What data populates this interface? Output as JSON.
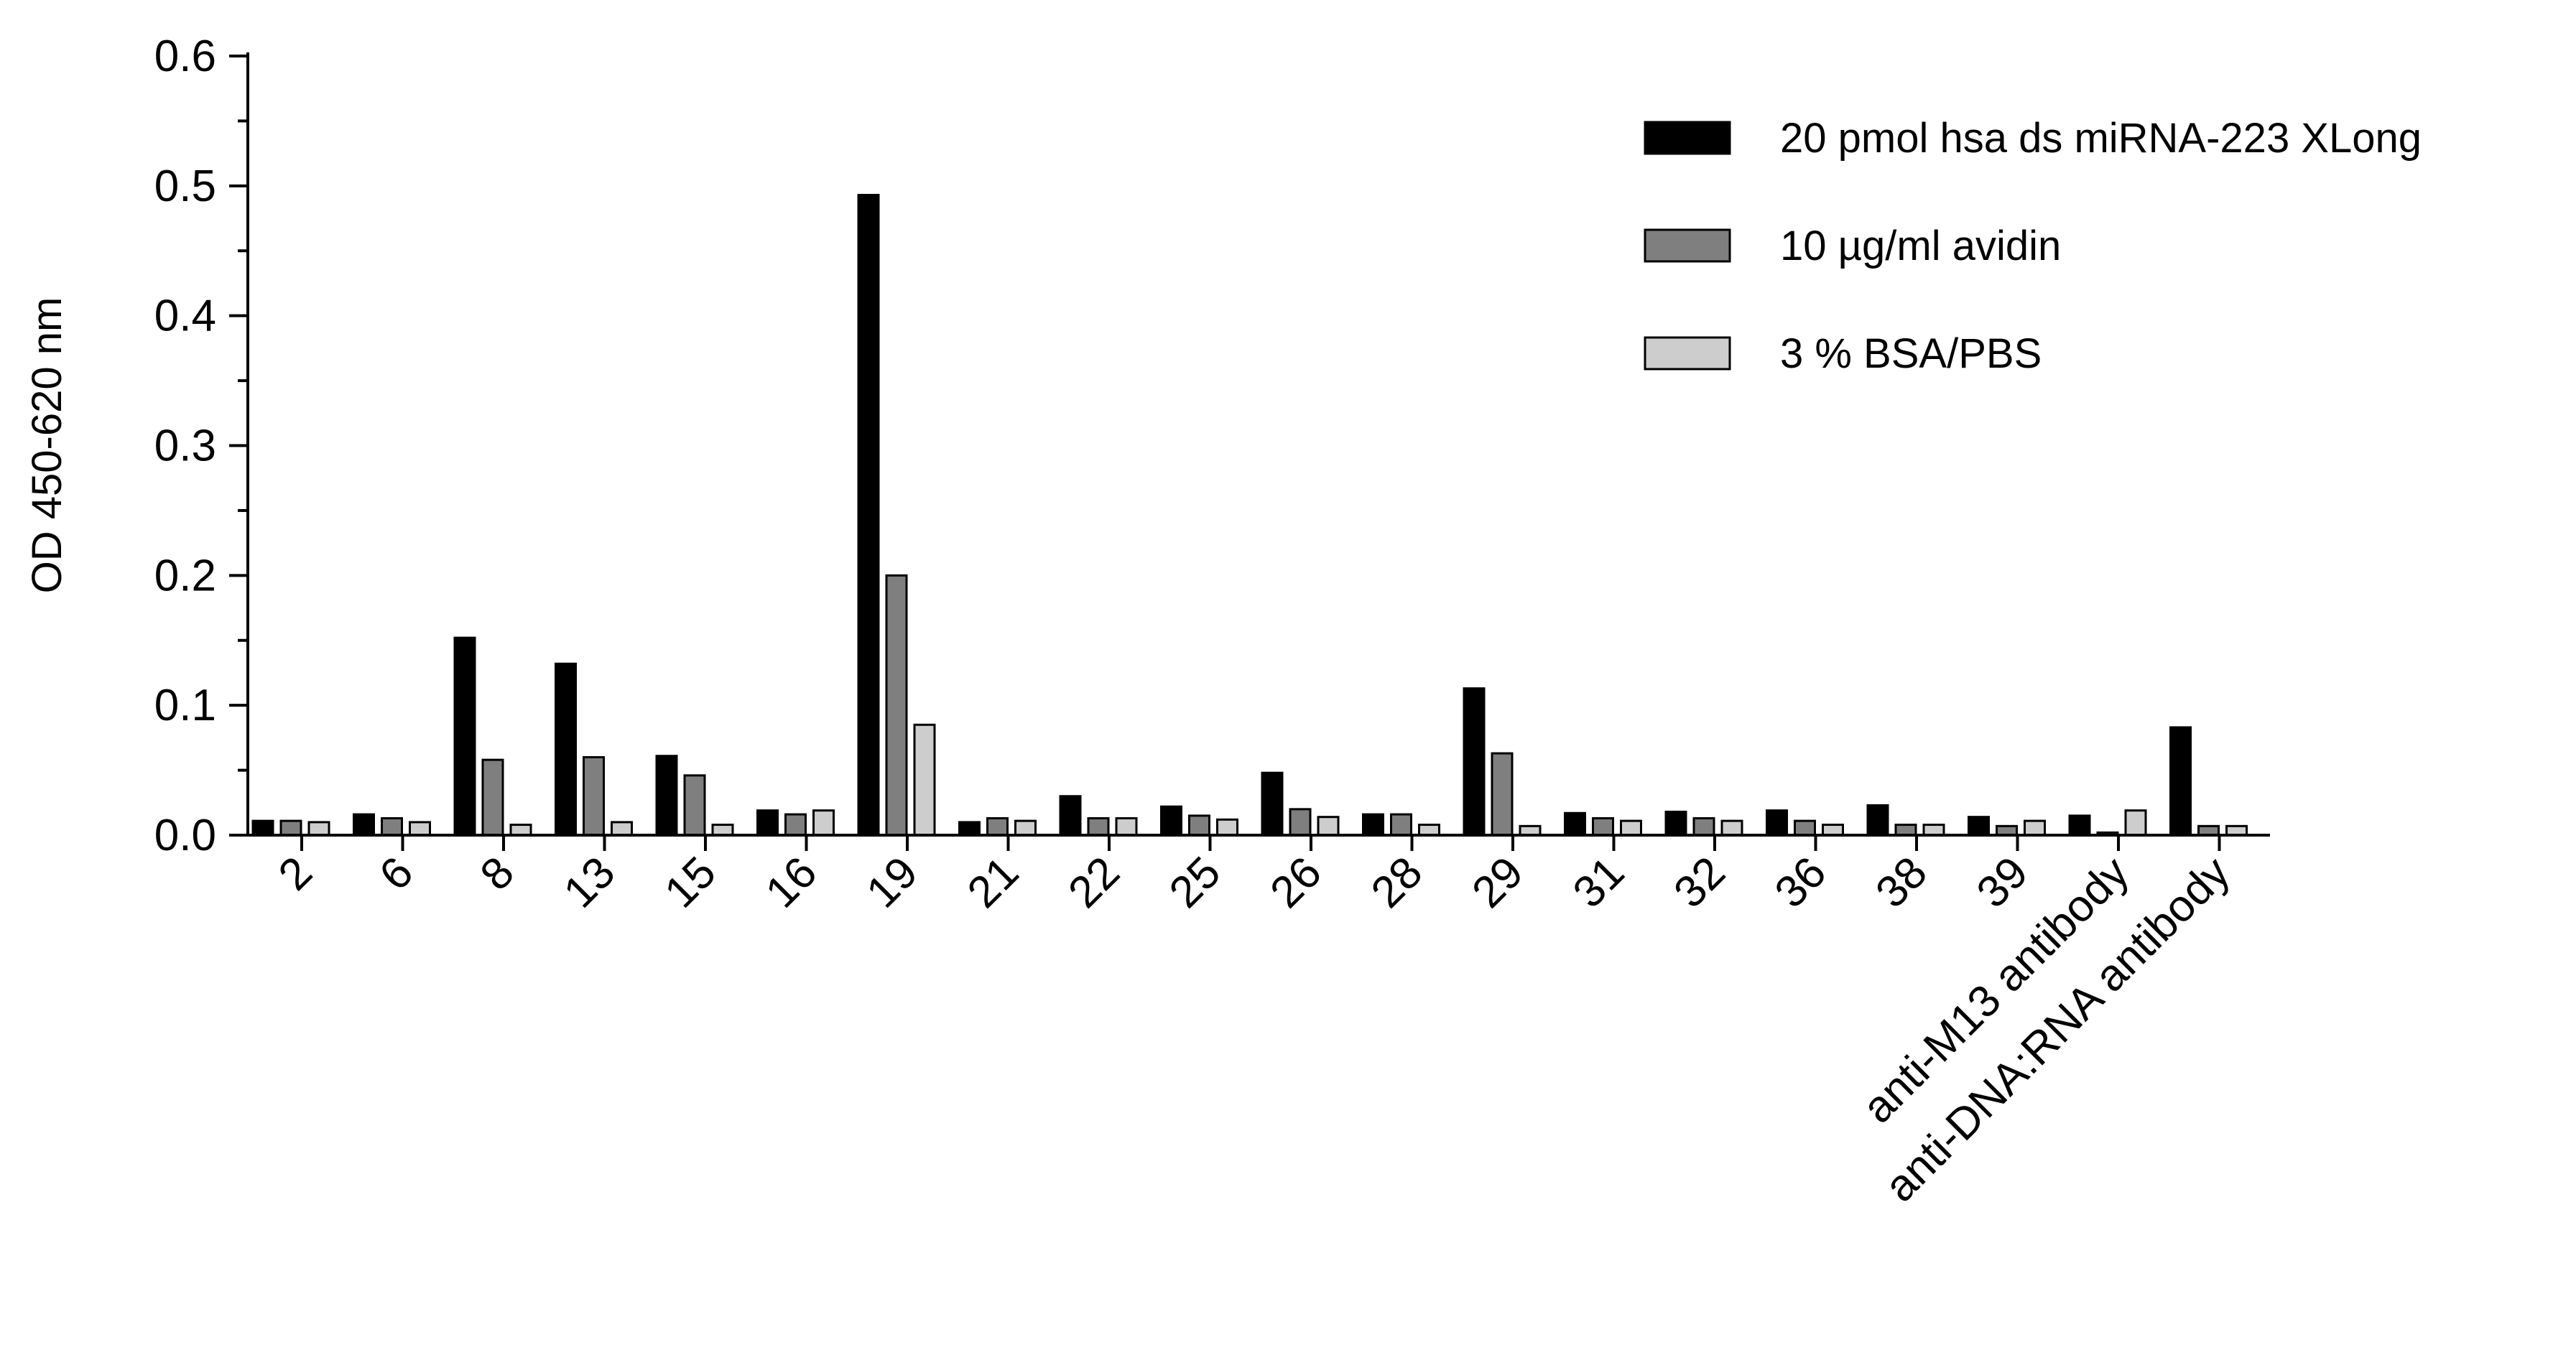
{
  "chart_data": {
    "type": "bar",
    "title": "",
    "xlabel": "",
    "ylabel": "OD 450-620 nm",
    "ylim": [
      0,
      0.6
    ],
    "yticks": [
      "0.0",
      "0.1",
      "0.2",
      "0.3",
      "0.4",
      "0.5",
      "0.6"
    ],
    "grid": false,
    "legend_position": "top-right",
    "categories": [
      "2",
      "6",
      "8",
      "13",
      "15",
      "16",
      "19",
      "21",
      "22",
      "25",
      "26",
      "28",
      "29",
      "31",
      "32",
      "36",
      "38",
      "39",
      "anti-M13 antibody",
      "anti-DNA:RNA antibody"
    ],
    "series": [
      {
        "name": "20 pmol hsa ds miRNA-223 XLong",
        "color": "#000000",
        "values": [
          0.011,
          0.016,
          0.152,
          0.132,
          0.061,
          0.019,
          0.493,
          0.01,
          0.03,
          0.022,
          0.048,
          0.016,
          0.113,
          0.017,
          0.018,
          0.019,
          0.023,
          0.014,
          0.015,
          0.083
        ]
      },
      {
        "name": "10 µg/ml avidin",
        "color": "#7f7f7f",
        "values": [
          0.011,
          0.013,
          0.058,
          0.06,
          0.046,
          0.016,
          0.2,
          0.013,
          0.013,
          0.015,
          0.02,
          0.016,
          0.063,
          0.013,
          0.013,
          0.011,
          0.008,
          0.007,
          0.002,
          0.007
        ]
      },
      {
        "name": "3 % BSA/PBS",
        "color": "#cdcdcd",
        "values": [
          0.01,
          0.01,
          0.008,
          0.01,
          0.008,
          0.019,
          0.085,
          0.011,
          0.013,
          0.012,
          0.014,
          0.008,
          0.007,
          0.011,
          0.011,
          0.008,
          0.008,
          0.011,
          0.019,
          0.007
        ]
      }
    ]
  }
}
